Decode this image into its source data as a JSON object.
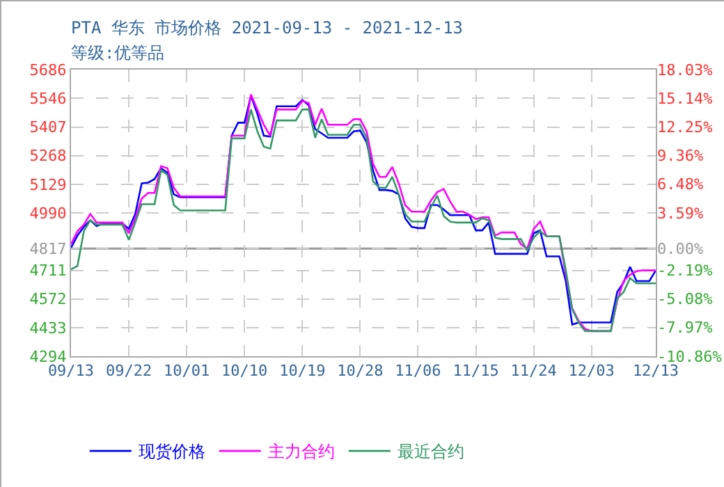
{
  "chart_data": {
    "type": "line",
    "title": "PTA 华东 市场价格 2021-09-13 - 2021-12-13",
    "subtitle": "等级:优等品",
    "x": [
      "2021-09-13",
      "2021-09-14",
      "2021-09-15",
      "2021-09-16",
      "2021-09-17",
      "2021-09-18",
      "2021-09-19",
      "2021-09-20",
      "2021-09-21",
      "2021-09-22",
      "2021-09-23",
      "2021-09-24",
      "2021-09-25",
      "2021-09-26",
      "2021-09-27",
      "2021-09-28",
      "2021-09-29",
      "2021-09-30",
      "2021-10-01",
      "2021-10-02",
      "2021-10-03",
      "2021-10-04",
      "2021-10-05",
      "2021-10-06",
      "2021-10-07",
      "2021-10-08",
      "2021-10-09",
      "2021-10-10",
      "2021-10-11",
      "2021-10-12",
      "2021-10-13",
      "2021-10-14",
      "2021-10-15",
      "2021-10-16",
      "2021-10-17",
      "2021-10-18",
      "2021-10-19",
      "2021-10-20",
      "2021-10-21",
      "2021-10-22",
      "2021-10-23",
      "2021-10-24",
      "2021-10-25",
      "2021-10-26",
      "2021-10-27",
      "2021-10-28",
      "2021-10-29",
      "2021-10-30",
      "2021-10-31",
      "2021-11-01",
      "2021-11-02",
      "2021-11-03",
      "2021-11-04",
      "2021-11-05",
      "2021-11-06",
      "2021-11-07",
      "2021-11-08",
      "2021-11-09",
      "2021-11-10",
      "2021-11-11",
      "2021-11-12",
      "2021-11-13",
      "2021-11-14",
      "2021-11-15",
      "2021-11-16",
      "2021-11-17",
      "2021-11-18",
      "2021-11-19",
      "2021-11-20",
      "2021-11-21",
      "2021-11-22",
      "2021-11-23",
      "2021-11-24",
      "2021-11-25",
      "2021-11-26",
      "2021-11-27",
      "2021-11-28",
      "2021-11-29",
      "2021-11-30",
      "2021-12-01",
      "2021-12-02",
      "2021-12-03",
      "2021-12-04",
      "2021-12-05",
      "2021-12-06",
      "2021-12-07",
      "2021-12-08",
      "2021-12-09",
      "2021-12-10",
      "2021-12-11",
      "2021-12-12",
      "2021-12-13"
    ],
    "series": [
      {
        "name": "现货价格",
        "color": "#0000ff",
        "values": [
          4821,
          4880,
          4922,
          4954,
          4926,
          4939,
          4939,
          4939,
          4939,
          4912,
          4985,
          5133,
          5137,
          5154,
          5207,
          5186,
          5080,
          5066,
          5066,
          5066,
          5066,
          5066,
          5066,
          5066,
          5066,
          5365,
          5428,
          5428,
          5559,
          5471,
          5365,
          5361,
          5508,
          5508,
          5508,
          5508,
          5538,
          5513,
          5397,
          5376,
          5355,
          5355,
          5355,
          5355,
          5386,
          5390,
          5333,
          5196,
          5101,
          5101,
          5097,
          5080,
          4964,
          4922,
          4916,
          4916,
          5028,
          5028,
          5007,
          4979,
          4979,
          4979,
          4979,
          4905,
          4905,
          4943,
          4791,
          4791,
          4791,
          4791,
          4791,
          4791,
          4891,
          4905,
          4779,
          4779,
          4779,
          4659,
          4448,
          4458,
          4458,
          4458,
          4458,
          4458,
          4458,
          4606,
          4652,
          4728,
          4659,
          4659,
          4659,
          4711
        ]
      },
      {
        "name": "主力合约",
        "color": "#ff00ff",
        "values": [
          4838,
          4901,
          4933,
          4985,
          4943,
          4943,
          4943,
          4943,
          4943,
          4891,
          4964,
          5059,
          5087,
          5087,
          5217,
          5207,
          5112,
          5070,
          5070,
          5070,
          5070,
          5070,
          5070,
          5070,
          5070,
          5365,
          5365,
          5365,
          5565,
          5492,
          5418,
          5365,
          5492,
          5492,
          5492,
          5492,
          5534,
          5523,
          5418,
          5496,
          5418,
          5418,
          5418,
          5418,
          5445,
          5445,
          5386,
          5228,
          5165,
          5165,
          5213,
          5133,
          5028,
          4996,
          4996,
          4996,
          5049,
          5091,
          5106,
          5045,
          4996,
          4996,
          4981,
          4960,
          4969,
          4969,
          4880,
          4895,
          4895,
          4895,
          4838,
          4817,
          4912,
          4948,
          4876,
          4876,
          4876,
          4690,
          4526,
          4465,
          4427,
          4416,
          4416,
          4416,
          4416,
          4564,
          4659,
          4690,
          4707,
          4711,
          4711,
          4711
        ]
      },
      {
        "name": "最近合约",
        "color": "#339966",
        "values": [
          4716,
          4732,
          4901,
          4954,
          4933,
          4933,
          4933,
          4933,
          4933,
          4859,
          4943,
          5032,
          5032,
          5032,
          5196,
          5175,
          5028,
          5002,
          5002,
          5002,
          5002,
          5002,
          5002,
          5002,
          5002,
          5352,
          5352,
          5352,
          5492,
          5386,
          5312,
          5302,
          5439,
          5439,
          5439,
          5439,
          5492,
          5492,
          5355,
          5445,
          5369,
          5369,
          5369,
          5369,
          5418,
          5418,
          5355,
          5144,
          5112,
          5112,
          5165,
          5080,
          4985,
          4948,
          4948,
          4948,
          5017,
          5074,
          4975,
          4948,
          4943,
          4943,
          4943,
          4943,
          4964,
          4954,
          4870,
          4863,
          4863,
          4863,
          4863,
          4806,
          4870,
          4901,
          4876,
          4876,
          4876,
          4711,
          4522,
          4458,
          4416,
          4416,
          4416,
          4416,
          4416,
          4574,
          4606,
          4673,
          4648,
          4648,
          4648,
          4648
        ]
      }
    ],
    "xlim": [
      "2021-09-13",
      "2021-12-13"
    ],
    "xticks": [
      {
        "value": "2021-09-13",
        "label": "09/13"
      },
      {
        "value": "2021-09-22",
        "label": "09/22"
      },
      {
        "value": "2021-10-01",
        "label": "10/01"
      },
      {
        "value": "2021-10-10",
        "label": "10/10"
      },
      {
        "value": "2021-10-19",
        "label": "10/19"
      },
      {
        "value": "2021-10-28",
        "label": "10/28"
      },
      {
        "value": "2021-11-06",
        "label": "11/06"
      },
      {
        "value": "2021-11-15",
        "label": "11/15"
      },
      {
        "value": "2021-11-24",
        "label": "11/24"
      },
      {
        "value": "2021-12-03",
        "label": "12/03"
      },
      {
        "value": "2021-12-13",
        "label": "12/13"
      }
    ],
    "ylim": [
      4294,
      5686
    ],
    "yticks": [
      4294,
      4433,
      4572,
      4711,
      4817,
      4990,
      5129,
      5268,
      5407,
      5546,
      5686
    ],
    "y2lim": [
      -10.86,
      18.03
    ],
    "y2ticks": [
      {
        "value": -10.86,
        "label": "-10.86%"
      },
      {
        "value": -7.97,
        "label": "-7.97%"
      },
      {
        "value": -5.08,
        "label": "-5.08%"
      },
      {
        "value": -2.19,
        "label": "-2.19%"
      },
      {
        "value": 0,
        "label": "0.00%"
      },
      {
        "value": 3.59,
        "label": "3.59%"
      },
      {
        "value": 6.48,
        "label": "6.48%"
      },
      {
        "value": 9.36,
        "label": "9.36%"
      },
      {
        "value": 12.25,
        "label": "12.25%"
      },
      {
        "value": 15.14,
        "label": "15.14%"
      },
      {
        "value": 18.03,
        "label": "18.03%"
      }
    ],
    "ref_lines": [
      {
        "axis": "y",
        "value": 4817,
        "color": "#999999"
      }
    ],
    "grid": true,
    "legend": "bottom left",
    "marker": "none",
    "line_style": "solid"
  }
}
